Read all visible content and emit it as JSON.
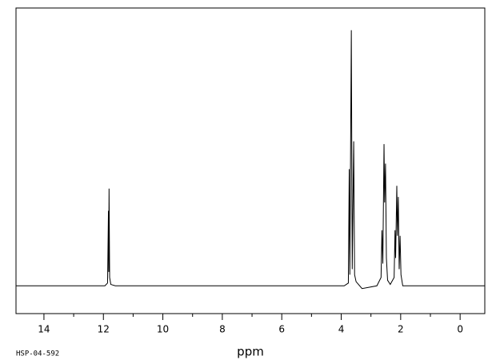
{
  "chart_data": {
    "type": "line",
    "x_label": "ppm",
    "footnote": "HSP-04-592",
    "xlim": [
      14.94,
      -0.83
    ],
    "xticks": [
      14,
      12,
      10,
      8,
      6,
      4,
      2,
      0
    ],
    "xminorticks": [
      13,
      11,
      9,
      7,
      5,
      3,
      1
    ],
    "ylim": [
      -10,
      100
    ],
    "color": "#000000",
    "series": [
      {
        "x": [
          14.94,
          11.95,
          11.86,
          11.83,
          11.82,
          11.81,
          11.79,
          11.75,
          11.6,
          3.9,
          3.76,
          3.73,
          3.71,
          3.66,
          3.63,
          3.58,
          3.55,
          3.5,
          3.3,
          2.8,
          2.66,
          2.63,
          2.6,
          2.56,
          2.54,
          2.51,
          2.48,
          2.44,
          2.35,
          2.22,
          2.19,
          2.17,
          2.13,
          2.11,
          2.08,
          2.05,
          2.02,
          1.99,
          1.93,
          -0.83
        ],
        "values": [
          0,
          0,
          1,
          27,
          5,
          35,
          3,
          0.5,
          0,
          0,
          1,
          42,
          4,
          92,
          6,
          52,
          4,
          1.5,
          -1,
          0,
          3,
          20,
          8,
          51,
          30,
          44,
          10,
          2,
          0.5,
          3,
          20,
          10,
          36,
          18,
          32,
          6,
          18,
          4,
          0,
          0
        ]
      }
    ]
  }
}
